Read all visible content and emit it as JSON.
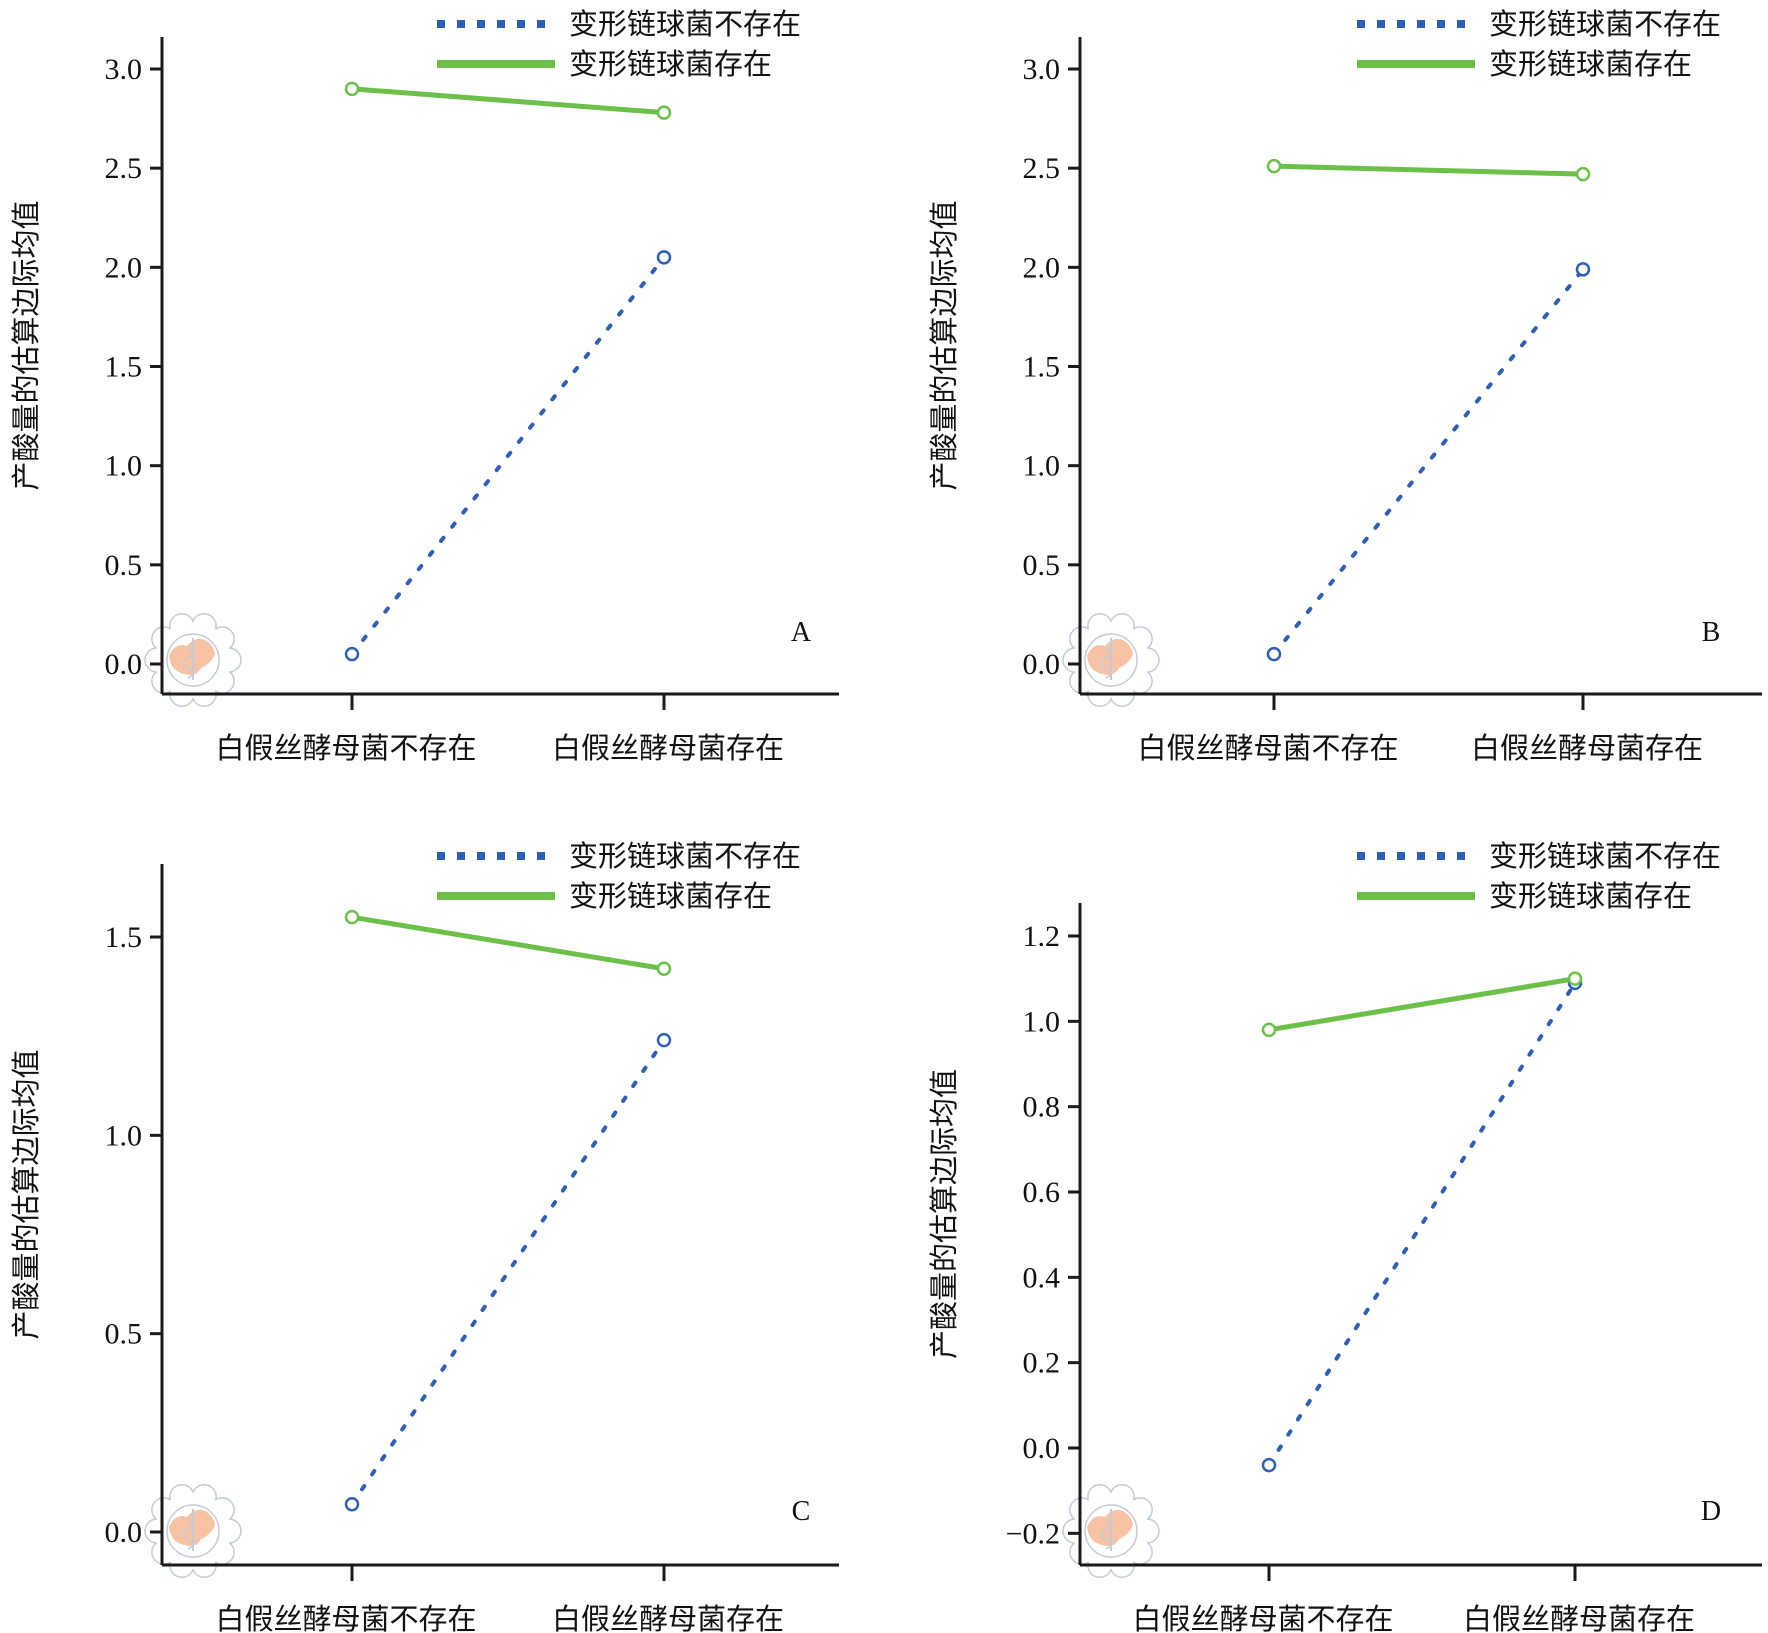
{
  "colors": {
    "absent": "#2f5fb5",
    "present": "#6cc04a",
    "seal_fill": "#f6b995",
    "seal_line": "#b9c3d0"
  },
  "chart_data": [
    {
      "panel": "A",
      "type": "line",
      "categories": [
        "白假丝酵母菌不存在",
        "白假丝酵母菌存在"
      ],
      "ylabel": "产酸量的估算边际均值",
      "yticks": [
        "0.0",
        "0.5",
        "1.0",
        "1.5",
        "2.0",
        "2.5",
        "3.0"
      ],
      "ytick_values": [
        0,
        0.5,
        1.0,
        1.5,
        2.0,
        2.5,
        3.0
      ],
      "ylim": [
        -0.16,
        3.17
      ],
      "legend_position": "top-right",
      "series": [
        {
          "name": "变形链球菌不存在",
          "style": "dotted",
          "color_key": "absent",
          "values": [
            0.05,
            2.05
          ]
        },
        {
          "name": "变形链球菌存在",
          "style": "solid",
          "color_key": "present",
          "values": [
            2.9,
            2.78
          ]
        }
      ]
    },
    {
      "panel": "B",
      "type": "line",
      "categories": [
        "白假丝酵母菌不存在",
        "白假丝酵母菌存在"
      ],
      "ylabel": "产酸量的估算边际均值",
      "yticks": [
        "0.0",
        "0.5",
        "1.0",
        "1.5",
        "2.0",
        "2.5",
        "3.0"
      ],
      "ytick_values": [
        0,
        0.5,
        1.0,
        1.5,
        2.0,
        2.5,
        3.0
      ],
      "ylim": [
        -0.16,
        3.17
      ],
      "legend_position": "top-right",
      "series": [
        {
          "name": "变形链球菌不存在",
          "style": "dotted",
          "color_key": "absent",
          "values": [
            0.05,
            1.99
          ]
        },
        {
          "name": "变形链球菌存在",
          "style": "solid",
          "color_key": "present",
          "values": [
            2.51,
            2.47
          ]
        }
      ]
    },
    {
      "panel": "C",
      "type": "line",
      "categories": [
        "白假丝酵母菌不存在",
        "白假丝酵母菌存在"
      ],
      "ylabel": "产酸量的估算边际均值",
      "yticks": [
        "0.0",
        "0.5",
        "1.0",
        "1.5"
      ],
      "ytick_values": [
        0,
        0.5,
        1.0,
        1.5
      ],
      "ylim": [
        -0.08,
        1.69
      ],
      "legend_position": "top-right",
      "series": [
        {
          "name": "变形链球菌不存在",
          "style": "dotted",
          "color_key": "absent",
          "values": [
            0.07,
            1.24
          ]
        },
        {
          "name": "变形链球菌存在",
          "style": "solid",
          "color_key": "present",
          "values": [
            1.55,
            1.42
          ]
        }
      ]
    },
    {
      "panel": "D",
      "type": "line",
      "categories": [
        "白假丝酵母菌不存在",
        "白假丝酵母菌存在"
      ],
      "ylabel": "产酸量的估算边际均值",
      "yticks": [
        "-0.2",
        "0.0",
        "0.2",
        "0.4",
        "0.6",
        "0.8",
        "1.0",
        "1.2"
      ],
      "ytick_labels": [
        "−0.2",
        "0.0",
        "0.2",
        "0.4",
        "0.6",
        "0.8",
        "1.0",
        "1.2"
      ],
      "ytick_values": [
        -0.2,
        0,
        0.2,
        0.4,
        0.6,
        0.8,
        1.0,
        1.2
      ],
      "ylim": [
        -0.27,
        1.28
      ],
      "legend_position": "top-right",
      "series": [
        {
          "name": "变形链球菌不存在",
          "style": "dotted",
          "color_key": "absent",
          "values": [
            -0.04,
            1.09
          ]
        },
        {
          "name": "变形链球菌存在",
          "style": "solid",
          "color_key": "present",
          "values": [
            0.98,
            1.1
          ]
        }
      ]
    }
  ]
}
